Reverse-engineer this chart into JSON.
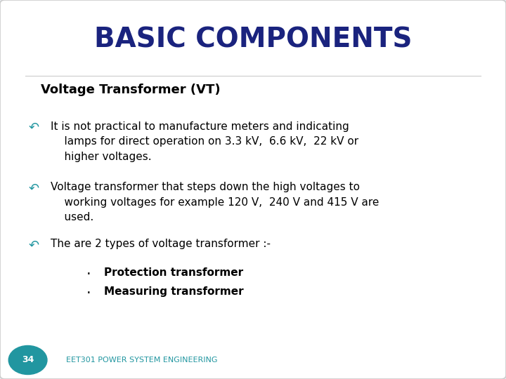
{
  "title": "BASIC COMPONENTS",
  "title_color": "#1a237e",
  "title_fontsize": 28,
  "background_color": "#e8edf2",
  "slide_bg": "#ffffff",
  "subtitle": "Voltage Transformer (VT)",
  "subtitle_fontsize": 13,
  "subtitle_color": "#000000",
  "body_fontsize": 11,
  "body_color": "#000000",
  "bullet_color": "#2196a0",
  "bullet_points": [
    "It is not practical to manufacture meters and indicating\n    lamps for direct operation on 3.3 kV,  6.6 kV,  22 kV or\n    higher voltages.",
    "Voltage transformer that steps down the high voltages to\n    working voltages for example 120 V,  240 V and 415 V are\n    used.",
    "The are 2 types of voltage transformer :-"
  ],
  "sub_bullets": [
    "Protection transformer",
    "Measuring transformer"
  ],
  "footer_left_text": "34",
  "footer_right_text": "EET301 POWER SYSTEM ENGINEERING",
  "footer_color": "#2196a0",
  "footer_fontsize": 8
}
